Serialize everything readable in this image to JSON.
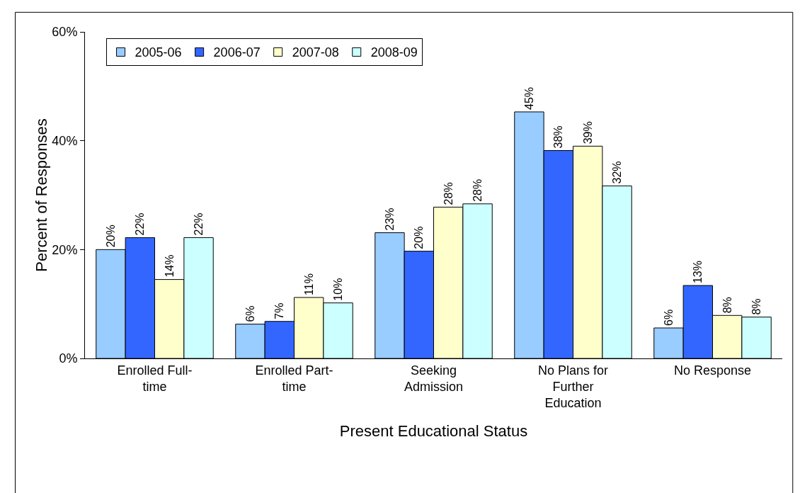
{
  "chart_data": {
    "type": "bar",
    "xlabel": "Present Educational Status",
    "ylabel": "Percent of Responses",
    "categories": [
      "Enrolled Full-time",
      "Enrolled Part-time",
      "Seeking Admission",
      "No Plans for Further Education",
      "No Response"
    ],
    "series": [
      {
        "name": "2005-06",
        "color": "#99ccff",
        "values": [
          20,
          6.3,
          23.1,
          45.3,
          5.6
        ],
        "value_labels": [
          "20%",
          "6%",
          "23%",
          "45%",
          "6%"
        ]
      },
      {
        "name": "2006-07",
        "color": "#3366ff",
        "values": [
          22.2,
          6.8,
          19.7,
          38.2,
          13.4
        ],
        "value_labels": [
          "22%",
          "7%",
          "20%",
          "38%",
          "13%"
        ]
      },
      {
        "name": "2007-08",
        "color": "#ffffcc",
        "values": [
          14.5,
          11.2,
          27.8,
          39.0,
          7.9
        ],
        "value_labels": [
          "14%",
          "11%",
          "28%",
          "39%",
          "8%"
        ]
      },
      {
        "name": "2008-09",
        "color": "#ccffff",
        "values": [
          22.2,
          10.2,
          28.4,
          31.7,
          7.6
        ],
        "value_labels": [
          "22%",
          "10%",
          "28%",
          "32%",
          "8%"
        ]
      }
    ],
    "ylim": [
      0,
      60
    ],
    "yticks": [
      {
        "value": 0,
        "label": "0%"
      },
      {
        "value": 20,
        "label": "20%"
      },
      {
        "value": 40,
        "label": "40%"
      },
      {
        "value": 60,
        "label": "60%"
      }
    ],
    "grid": false,
    "legend": "top left"
  }
}
